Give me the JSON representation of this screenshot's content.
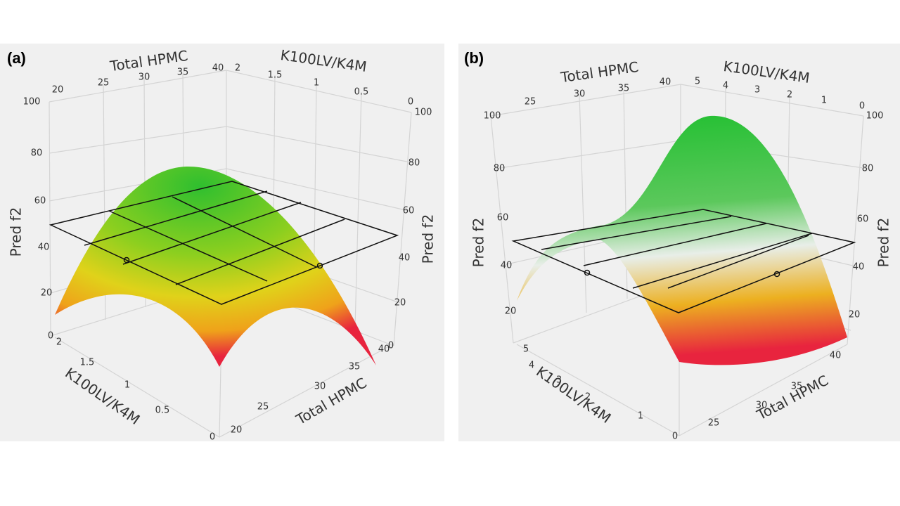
{
  "panels": [
    {
      "label": "(a)",
      "top_left_axis": {
        "title": "Total HPMC",
        "ticks": [
          "20",
          "25",
          "30",
          "35",
          "40"
        ]
      },
      "top_right_axis": {
        "title": "K100LV/K4M",
        "ticks": [
          "2",
          "1.5",
          "1",
          "0.5",
          "0"
        ]
      },
      "left_axis": {
        "title": "Pred f2",
        "ticks": [
          "100",
          "80",
          "60",
          "40",
          "20",
          "0"
        ]
      },
      "right_axis": {
        "title": "Pred f2",
        "ticks": [
          "100",
          "80",
          "60",
          "40",
          "20",
          "0"
        ]
      },
      "bottom_left_axis": {
        "title": "K100LV/K4M",
        "ticks": [
          "2",
          "1.5",
          "1",
          "0.5",
          "0"
        ]
      },
      "bottom_right_axis": {
        "title": "Total HPMC",
        "ticks": [
          "20",
          "25",
          "30",
          "35",
          "40"
        ]
      }
    },
    {
      "label": "(b)",
      "top_left_axis": {
        "title": "Total HPMC",
        "ticks": [
          "25",
          "30",
          "35",
          "40"
        ]
      },
      "top_right_axis": {
        "title": "K100LV/K4M",
        "ticks": [
          "5",
          "4",
          "3",
          "2",
          "1",
          "0"
        ]
      },
      "left_axis": {
        "title": "Pred f2",
        "ticks": [
          "100",
          "80",
          "60",
          "40",
          "20"
        ]
      },
      "right_axis": {
        "title": "Pred f2",
        "ticks": [
          "100",
          "80",
          "60",
          "40",
          "20"
        ]
      },
      "bottom_left_axis": {
        "title": "K100LV/K4M",
        "ticks": [
          "5",
          "4",
          "3",
          "2",
          "1",
          "0"
        ]
      },
      "bottom_right_axis": {
        "title": "Total HPMC",
        "ticks": [
          "25",
          "30",
          "35",
          "40"
        ]
      }
    }
  ]
}
